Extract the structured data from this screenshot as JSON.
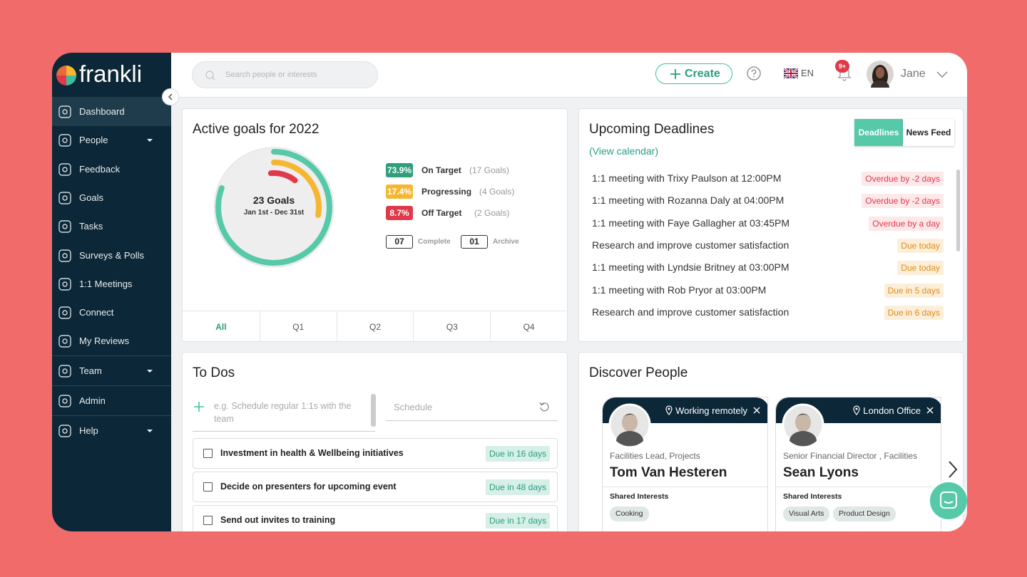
{
  "sidebar": {
    "logo": "frankli",
    "nav": [
      [
        {
          "label": "Dashboard",
          "active": true
        },
        {
          "label": "People",
          "dropdown": true
        },
        {
          "label": "Feedback"
        },
        {
          "label": "Goals"
        },
        {
          "label": "Tasks"
        },
        {
          "label": "Surveys & Polls"
        },
        {
          "label": "1:1 Meetings"
        },
        {
          "label": "Connect"
        },
        {
          "label": "My Reviews"
        }
      ],
      [
        {
          "label": "Team",
          "dropdown": true
        }
      ],
      [
        {
          "label": "Admin"
        }
      ],
      [
        {
          "label": "Help",
          "dropdown": true
        }
      ]
    ]
  },
  "header": {
    "search_placeholder": "Search people or interests",
    "create": "Create",
    "language": "EN",
    "notifications": "9+",
    "user": "Jane"
  },
  "goals": {
    "title": "Active goals for 2022",
    "center_title": "23 Goals",
    "center_subtitle": "Jan 1st - Dec 31st",
    "legend": [
      {
        "percent": "73.9%",
        "label": "On Target",
        "count": "(17 Goals)",
        "color": "#2f9e7d"
      },
      {
        "percent": "17.4%",
        "label": "Progressing",
        "count": "(4 Goals)",
        "color": "#f5b731"
      },
      {
        "percent": "8.7%",
        "label": "Off Target",
        "count": "(2 Goals)",
        "color": "#e0394a"
      }
    ],
    "counters": [
      {
        "value": "07",
        "label": "Complete"
      },
      {
        "value": "01",
        "label": "Archive"
      }
    ],
    "tabs": [
      "All",
      "Q1",
      "Q2",
      "Q3",
      "Q4"
    ],
    "active_tab": 0
  },
  "deadlines": {
    "title": "Upcoming Deadlines",
    "link": "(View calendar)",
    "toggle": [
      "Deadlines",
      "News Feed"
    ],
    "active_toggle": 0,
    "items": [
      {
        "text": "1:1 meeting with Trixy Paulson at 12:00PM",
        "status": "Overdue by -2 days",
        "tone": "overdue"
      },
      {
        "text": "1:1 meeting with Rozanna Daly at 04:00PM",
        "status": "Overdue by -2 days",
        "tone": "overdue"
      },
      {
        "text": "1:1 meeting with Faye Gallagher at 03:45PM",
        "status": "Overdue by a day",
        "tone": "overdue"
      },
      {
        "text": "Research and improve customer satisfaction",
        "status": "Due today",
        "tone": "due"
      },
      {
        "text": "1:1 meeting with Lyndsie Britney at 03:00PM",
        "status": "Due today",
        "tone": "due"
      },
      {
        "text": "1:1 meeting with Rob Pryor at 03:00PM",
        "status": "Due in 5 days",
        "tone": "due"
      },
      {
        "text": "Research and improve customer satisfaction",
        "status": "Due in 6 days",
        "tone": "due"
      }
    ]
  },
  "todos": {
    "title": "To Dos",
    "placeholder": "e.g. Schedule regular 1:1s with the team",
    "schedule_placeholder": "Schedule",
    "items": [
      {
        "text": "Investment in health & Wellbeing initiatives",
        "due": "Due in 16 days"
      },
      {
        "text": "Decide on presenters for upcoming event",
        "due": "Due in 48 days"
      },
      {
        "text": "Send out invites to training",
        "due": "Due in 17 days"
      }
    ]
  },
  "discover": {
    "title": "Discover People",
    "interests_label": "Shared Interests",
    "people": [
      {
        "location": "Working remotely",
        "role": "Facilities Lead, Projects",
        "name": "Tom Van Hesteren",
        "interests": [
          "Cooking"
        ]
      },
      {
        "location": "London Office",
        "role": "Senior Financial Director , Facilities",
        "name": "Sean Lyons",
        "interests": [
          "Visual Arts",
          "Product Design"
        ]
      }
    ]
  }
}
